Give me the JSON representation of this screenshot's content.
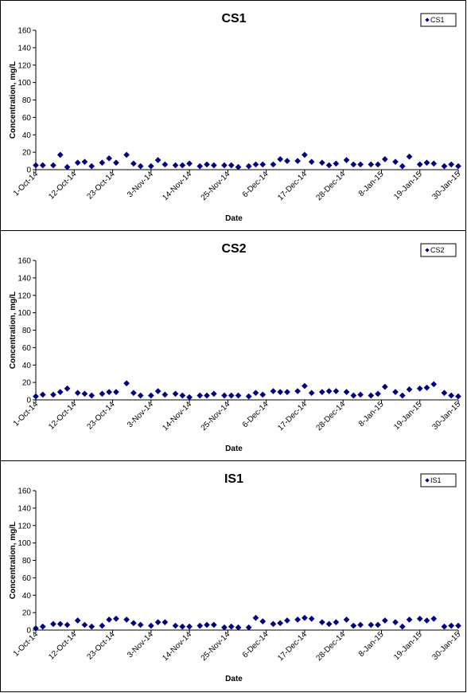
{
  "chart_data": [
    {
      "type": "scatter",
      "title": "CS1",
      "xlabel": "Date",
      "ylabel": "Concentration, mg/L",
      "ylim": [
        0,
        160
      ],
      "yticks": [
        "0",
        "20",
        "40",
        "60",
        "80",
        "100",
        "120",
        "140",
        "160"
      ],
      "xlim": [
        "2014-10-01",
        "2015-01-30"
      ],
      "xticks": [
        "1-Oct-14",
        "12-Oct-14",
        "23-Oct-14",
        "3-Nov-14",
        "14-Nov-14",
        "25-Nov-14",
        "6-Dec-14",
        "17-Dec-14",
        "28-Dec-14",
        "8-Jan-15",
        "19-Jan-15",
        "30-Jan-15"
      ],
      "legend_position": "top-right",
      "grid": false,
      "marker": "diamond",
      "marker_color": "#000080",
      "series": [
        {
          "name": "CS1",
          "x": [
            "2014-10-01",
            "2014-10-03",
            "2014-10-06",
            "2014-10-08",
            "2014-10-10",
            "2014-10-13",
            "2014-10-15",
            "2014-10-17",
            "2014-10-20",
            "2014-10-22",
            "2014-10-24",
            "2014-10-27",
            "2014-10-29",
            "2014-10-31",
            "2014-11-03",
            "2014-11-05",
            "2014-11-07",
            "2014-11-10",
            "2014-11-12",
            "2014-11-14",
            "2014-11-17",
            "2014-11-19",
            "2014-11-21",
            "2014-11-24",
            "2014-11-26",
            "2014-11-28",
            "2014-12-01",
            "2014-12-03",
            "2014-12-05",
            "2014-12-08",
            "2014-12-10",
            "2014-12-12",
            "2014-12-15",
            "2014-12-17",
            "2014-12-19",
            "2014-12-22",
            "2014-12-24",
            "2014-12-26",
            "2014-12-29",
            "2014-12-31",
            "2015-01-02",
            "2015-01-05",
            "2015-01-07",
            "2015-01-09",
            "2015-01-12",
            "2015-01-14",
            "2015-01-16",
            "2015-01-19",
            "2015-01-21",
            "2015-01-23",
            "2015-01-26",
            "2015-01-28",
            "2015-01-30"
          ],
          "y": [
            5,
            5,
            5,
            17,
            3,
            8,
            9,
            4,
            8,
            13,
            8,
            17,
            7,
            4,
            4,
            11,
            6,
            5,
            5,
            7,
            4,
            6,
            5,
            5,
            5,
            3,
            4,
            6,
            6,
            6,
            12,
            10,
            10,
            17,
            9,
            8,
            5,
            7,
            11,
            6,
            6,
            6,
            6,
            12,
            9,
            4,
            15,
            6,
            8,
            7,
            4,
            6,
            4
          ]
        }
      ]
    },
    {
      "type": "scatter",
      "title": "CS2",
      "xlabel": "Date",
      "ylabel": "Concentration, mg/L",
      "ylim": [
        0,
        160
      ],
      "yticks": [
        "0",
        "20",
        "40",
        "60",
        "80",
        "100",
        "120",
        "140",
        "160"
      ],
      "xlim": [
        "2014-10-01",
        "2015-01-30"
      ],
      "xticks": [
        "1-Oct-14",
        "12-Oct-14",
        "23-Oct-14",
        "3-Nov-14",
        "14-Nov-14",
        "25-Nov-14",
        "6-Dec-14",
        "17-Dec-14",
        "28-Dec-14",
        "8-Jan-15",
        "19-Jan-15",
        "30-Jan-15"
      ],
      "legend_position": "top-right",
      "grid": false,
      "marker": "diamond",
      "marker_color": "#000080",
      "series": [
        {
          "name": "CS2",
          "x": [
            "2014-10-01",
            "2014-10-03",
            "2014-10-06",
            "2014-10-08",
            "2014-10-10",
            "2014-10-13",
            "2014-10-15",
            "2014-10-17",
            "2014-10-20",
            "2014-10-22",
            "2014-10-24",
            "2014-10-27",
            "2014-10-29",
            "2014-10-31",
            "2014-11-03",
            "2014-11-05",
            "2014-11-07",
            "2014-11-10",
            "2014-11-12",
            "2014-11-14",
            "2014-11-17",
            "2014-11-19",
            "2014-11-21",
            "2014-11-24",
            "2014-11-26",
            "2014-11-28",
            "2014-12-01",
            "2014-12-03",
            "2014-12-05",
            "2014-12-08",
            "2014-12-10",
            "2014-12-12",
            "2014-12-15",
            "2014-12-17",
            "2014-12-19",
            "2014-12-22",
            "2014-12-24",
            "2014-12-26",
            "2014-12-29",
            "2014-12-31",
            "2015-01-02",
            "2015-01-05",
            "2015-01-07",
            "2015-01-09",
            "2015-01-12",
            "2015-01-14",
            "2015-01-16",
            "2015-01-19",
            "2015-01-21",
            "2015-01-23",
            "2015-01-26",
            "2015-01-28",
            "2015-01-30"
          ],
          "y": [
            4,
            6,
            6,
            9,
            13,
            8,
            7,
            5,
            7,
            9,
            9,
            19,
            8,
            5,
            5,
            10,
            6,
            7,
            5,
            3,
            5,
            5,
            7,
            5,
            5,
            5,
            4,
            8,
            6,
            10,
            9,
            9,
            10,
            16,
            8,
            9,
            10,
            10,
            9,
            5,
            6,
            5,
            7,
            15,
            9,
            5,
            12,
            13,
            14,
            18,
            8,
            5,
            4
          ]
        }
      ]
    },
    {
      "type": "scatter",
      "title": "IS1",
      "xlabel": "Date",
      "ylabel": "Concentration, mg/L",
      "ylim": [
        0,
        160
      ],
      "yticks": [
        "0",
        "20",
        "40",
        "60",
        "80",
        "100",
        "120",
        "140",
        "160"
      ],
      "xlim": [
        "2014-10-01",
        "2015-01-30"
      ],
      "xticks": [
        "1-Oct-14",
        "12-Oct-14",
        "23-Oct-14",
        "3-Nov-14",
        "14-Nov-14",
        "25-Nov-14",
        "6-Dec-14",
        "17-Dec-14",
        "28-Dec-14",
        "8-Jan-15",
        "19-Jan-15",
        "30-Jan-15"
      ],
      "legend_position": "top-right",
      "grid": false,
      "marker": "diamond",
      "marker_color": "#000080",
      "series": [
        {
          "name": "IS1",
          "x": [
            "2014-10-01",
            "2014-10-03",
            "2014-10-06",
            "2014-10-08",
            "2014-10-10",
            "2014-10-13",
            "2014-10-15",
            "2014-10-17",
            "2014-10-20",
            "2014-10-22",
            "2014-10-24",
            "2014-10-27",
            "2014-10-29",
            "2014-10-31",
            "2014-11-03",
            "2014-11-05",
            "2014-11-07",
            "2014-11-10",
            "2014-11-12",
            "2014-11-14",
            "2014-11-17",
            "2014-11-19",
            "2014-11-21",
            "2014-11-24",
            "2014-11-26",
            "2014-11-28",
            "2014-12-01",
            "2014-12-03",
            "2014-12-05",
            "2014-12-08",
            "2014-12-10",
            "2014-12-12",
            "2014-12-15",
            "2014-12-17",
            "2014-12-19",
            "2014-12-22",
            "2014-12-24",
            "2014-12-26",
            "2014-12-29",
            "2014-12-31",
            "2015-01-02",
            "2015-01-05",
            "2015-01-07",
            "2015-01-09",
            "2015-01-12",
            "2015-01-14",
            "2015-01-16",
            "2015-01-19",
            "2015-01-21",
            "2015-01-23",
            "2015-01-26",
            "2015-01-28",
            "2015-01-30"
          ],
          "y": [
            2,
            4,
            7,
            7,
            6,
            11,
            6,
            4,
            5,
            12,
            13,
            12,
            8,
            6,
            5,
            9,
            9,
            5,
            4,
            4,
            5,
            6,
            6,
            3,
            4,
            3,
            3,
            14,
            10,
            7,
            8,
            11,
            12,
            14,
            13,
            9,
            7,
            9,
            12,
            5,
            6,
            6,
            6,
            11,
            9,
            4,
            12,
            13,
            11,
            13,
            4,
            5,
            5
          ]
        }
      ]
    }
  ]
}
